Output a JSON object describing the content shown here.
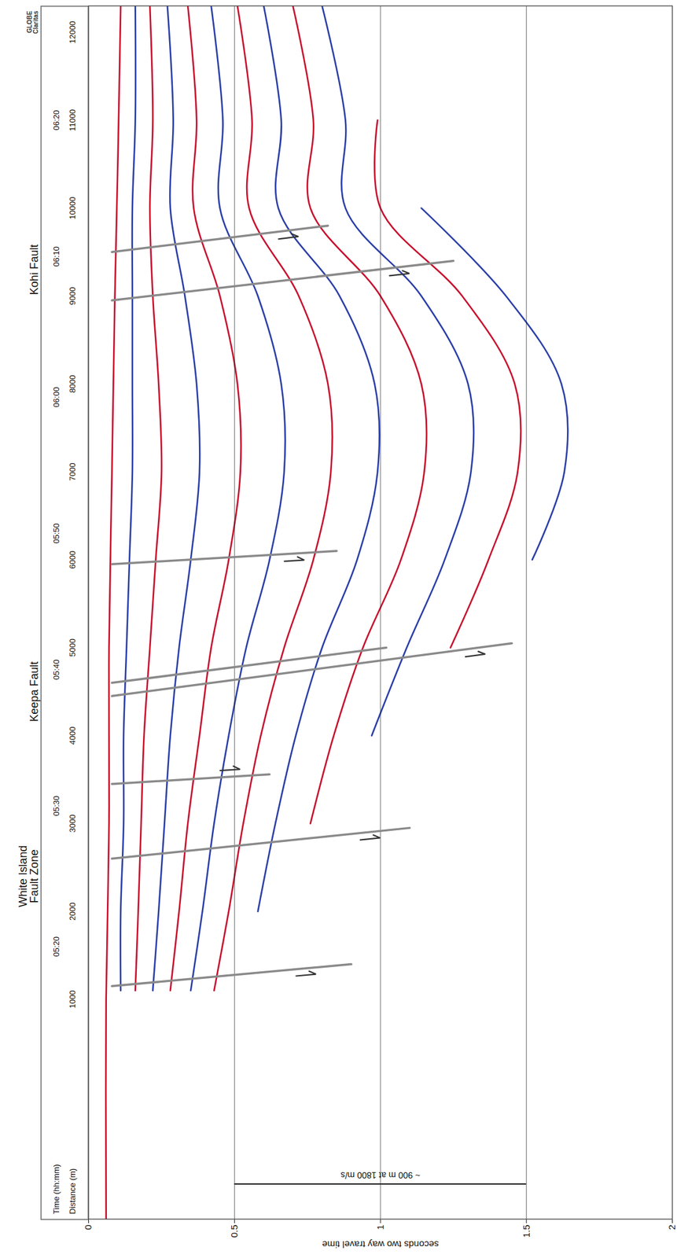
{
  "chart_data": {
    "type": "seismic_section",
    "xlim": [
      -1500,
      12300
    ],
    "xticks": [
      1000,
      2000,
      3000,
      4000,
      5000,
      6000,
      7000,
      8000,
      9000,
      10000,
      11000,
      12000
    ],
    "ylim": [
      0,
      2
    ],
    "yticks": [
      0,
      0.5,
      1,
      1.5,
      2
    ],
    "y_label": "seconds two way travel time",
    "grid": true,
    "header": {
      "time_title": "Time (hh:mm)",
      "distance_title": "Distance (m)",
      "time_marks": [
        {
          "x": 1600,
          "label": "05:20"
        },
        {
          "x": 3200,
          "label": "05:30"
        },
        {
          "x": 4750,
          "label": "05:40"
        },
        {
          "x": 6300,
          "label": "05:50"
        },
        {
          "x": 7850,
          "label": "06:00"
        },
        {
          "x": 9450,
          "label": "06:10"
        },
        {
          "x": 11000,
          "label": "06:20"
        }
      ]
    },
    "fault_labels": [
      {
        "x": 2400,
        "text": "White Island Fault Zone"
      },
      {
        "x": 4500,
        "text": "Keepa Fault"
      },
      {
        "x": 9300,
        "text": "Kohi Fault"
      }
    ],
    "faults": [
      {
        "points": [
          [
            1150,
            0.08
          ],
          [
            1400,
            0.9
          ]
        ],
        "arrow": [
          1290,
          0.78
        ]
      },
      {
        "points": [
          [
            2600,
            0.08
          ],
          [
            2950,
            1.1
          ]
        ],
        "arrow": [
          2840,
          1.0
        ]
      },
      {
        "points": [
          [
            3450,
            0.08
          ],
          [
            3560,
            0.62
          ]
        ],
        "arrow": [
          3620,
          0.52
        ]
      },
      {
        "points": [
          [
            4450,
            0.08
          ],
          [
            5050,
            1.45
          ]
        ],
        "arrow": [
          4930,
          1.36
        ]
      },
      {
        "points": [
          [
            4600,
            0.08
          ],
          [
            5000,
            1.02
          ]
        ]
      },
      {
        "points": [
          [
            5950,
            0.08
          ],
          [
            6100,
            0.85
          ]
        ],
        "arrow": [
          6000,
          0.74
        ]
      },
      {
        "points": [
          [
            8950,
            0.08
          ],
          [
            9400,
            1.25
          ]
        ],
        "arrow": [
          9260,
          1.1
        ]
      },
      {
        "points": [
          [
            9500,
            0.08
          ],
          [
            9800,
            0.82
          ]
        ],
        "arrow": [
          9680,
          0.72
        ]
      }
    ],
    "reflectors": [
      {
        "color": "#c8102e",
        "points": [
          [
            -1500,
            0.06
          ],
          [
            1000,
            0.06
          ],
          [
            3000,
            0.07
          ],
          [
            5000,
            0.07
          ],
          [
            7000,
            0.08
          ],
          [
            9000,
            0.09
          ],
          [
            10500,
            0.1
          ],
          [
            12300,
            0.11
          ]
        ]
      },
      {
        "color": "#2b3fa8",
        "points": [
          [
            1100,
            0.11
          ],
          [
            2000,
            0.11
          ],
          [
            3000,
            0.12
          ],
          [
            4000,
            0.12
          ],
          [
            5000,
            0.13
          ],
          [
            6000,
            0.14
          ],
          [
            7000,
            0.15
          ],
          [
            8000,
            0.15
          ],
          [
            9000,
            0.15
          ],
          [
            10000,
            0.15
          ],
          [
            11000,
            0.16
          ],
          [
            12300,
            0.16
          ]
        ]
      },
      {
        "color": "#c8102e",
        "points": [
          [
            1100,
            0.16
          ],
          [
            2000,
            0.17
          ],
          [
            3000,
            0.18
          ],
          [
            4000,
            0.19
          ],
          [
            5000,
            0.21
          ],
          [
            6000,
            0.23
          ],
          [
            7000,
            0.25
          ],
          [
            8000,
            0.24
          ],
          [
            9000,
            0.22
          ],
          [
            10000,
            0.21
          ],
          [
            11000,
            0.22
          ],
          [
            12300,
            0.21
          ]
        ]
      },
      {
        "color": "#2b3fa8",
        "points": [
          [
            1100,
            0.22
          ],
          [
            2000,
            0.24
          ],
          [
            3000,
            0.26
          ],
          [
            4000,
            0.28
          ],
          [
            5000,
            0.31
          ],
          [
            6000,
            0.35
          ],
          [
            7000,
            0.38
          ],
          [
            8000,
            0.37
          ],
          [
            9000,
            0.33
          ],
          [
            10000,
            0.28
          ],
          [
            11000,
            0.29
          ],
          [
            12300,
            0.27
          ]
        ]
      },
      {
        "color": "#c8102e",
        "points": [
          [
            1100,
            0.28
          ],
          [
            2000,
            0.31
          ],
          [
            3000,
            0.34
          ],
          [
            4000,
            0.38
          ],
          [
            5000,
            0.42
          ],
          [
            6000,
            0.48
          ],
          [
            7000,
            0.52
          ],
          [
            8000,
            0.51
          ],
          [
            9000,
            0.45
          ],
          [
            10000,
            0.36
          ],
          [
            11000,
            0.37
          ],
          [
            12300,
            0.34
          ]
        ]
      },
      {
        "color": "#2b3fa8",
        "points": [
          [
            1100,
            0.35
          ],
          [
            2000,
            0.39
          ],
          [
            3000,
            0.43
          ],
          [
            4000,
            0.48
          ],
          [
            5000,
            0.54
          ],
          [
            6000,
            0.62
          ],
          [
            7000,
            0.67
          ],
          [
            8000,
            0.66
          ],
          [
            9000,
            0.58
          ],
          [
            10000,
            0.45
          ],
          [
            11000,
            0.46
          ],
          [
            12300,
            0.42
          ]
        ]
      },
      {
        "color": "#c8102e",
        "points": [
          [
            1100,
            0.43
          ],
          [
            2000,
            0.48
          ],
          [
            3000,
            0.53
          ],
          [
            4000,
            0.59
          ],
          [
            5000,
            0.67
          ],
          [
            6000,
            0.77
          ],
          [
            7000,
            0.83
          ],
          [
            8000,
            0.82
          ],
          [
            9000,
            0.72
          ],
          [
            10000,
            0.55
          ],
          [
            11000,
            0.56
          ],
          [
            12300,
            0.51
          ]
        ]
      },
      {
        "color": "#2b3fa8",
        "points": [
          [
            2000,
            0.58
          ],
          [
            3000,
            0.64
          ],
          [
            4000,
            0.71
          ],
          [
            5000,
            0.8
          ],
          [
            6000,
            0.92
          ],
          [
            7000,
            0.99
          ],
          [
            8000,
            0.98
          ],
          [
            9000,
            0.86
          ],
          [
            10000,
            0.65
          ],
          [
            11000,
            0.66
          ],
          [
            12300,
            0.6
          ]
        ]
      },
      {
        "color": "#c8102e",
        "points": [
          [
            3000,
            0.76
          ],
          [
            4000,
            0.84
          ],
          [
            5000,
            0.94
          ],
          [
            6000,
            1.07
          ],
          [
            7000,
            1.15
          ],
          [
            8000,
            1.14
          ],
          [
            9000,
            1.0
          ],
          [
            10000,
            0.76
          ],
          [
            11000,
            0.77
          ],
          [
            12300,
            0.7
          ]
        ]
      },
      {
        "color": "#2b3fa8",
        "points": [
          [
            4000,
            0.97
          ],
          [
            5000,
            1.09
          ],
          [
            6000,
            1.22
          ],
          [
            7000,
            1.31
          ],
          [
            8000,
            1.3
          ],
          [
            9000,
            1.14
          ],
          [
            10000,
            0.88
          ],
          [
            11000,
            0.88
          ],
          [
            12300,
            0.8
          ]
        ]
      },
      {
        "color": "#c8102e",
        "points": [
          [
            5000,
            1.24
          ],
          [
            6000,
            1.37
          ],
          [
            7000,
            1.47
          ],
          [
            8000,
            1.46
          ],
          [
            9000,
            1.28
          ],
          [
            10000,
            1.0
          ],
          [
            11000,
            0.99
          ]
        ]
      },
      {
        "color": "#2b3fa8",
        "points": [
          [
            6000,
            1.52
          ],
          [
            7000,
            1.63
          ],
          [
            8000,
            1.62
          ],
          [
            9000,
            1.43
          ],
          [
            10000,
            1.14
          ]
        ]
      }
    ],
    "scale_bar": {
      "label": "~ 900 m at 1800 m/s",
      "x": -1100,
      "y_range": [
        0.5,
        1.5
      ]
    },
    "logo": [
      "GLOBE",
      "Claritas"
    ]
  }
}
